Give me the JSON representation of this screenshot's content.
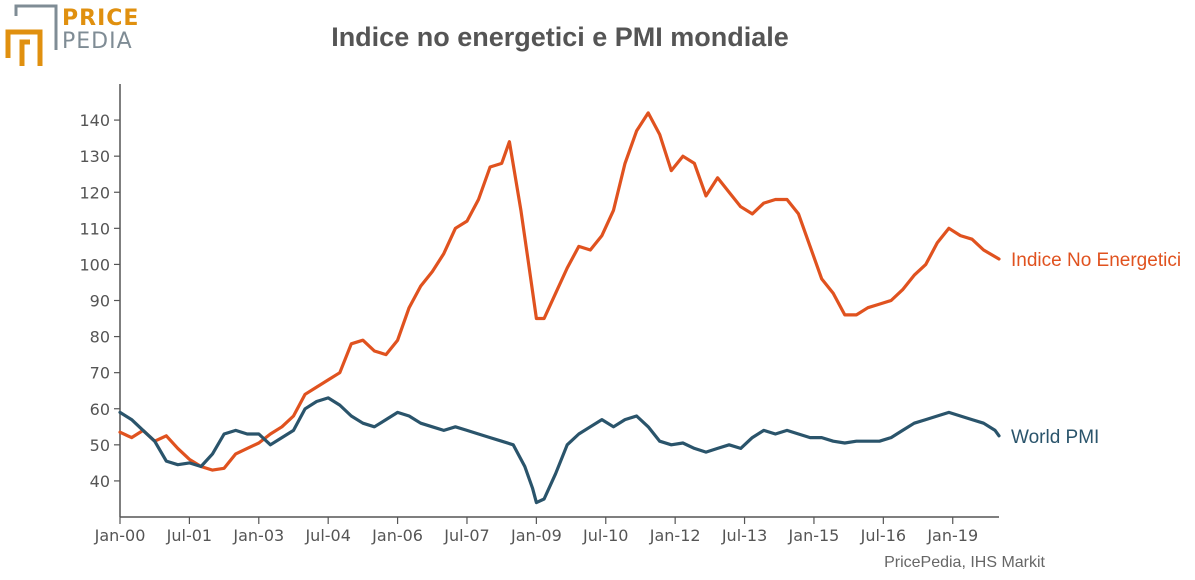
{
  "logo": {
    "word1": "PRICE",
    "word2": "PEDIA",
    "accent": "#e0900f",
    "grey": "#7f8c95"
  },
  "source": "PricePedia, IHS Markit",
  "colors": {
    "orange": "#e0521f",
    "blue": "#2a546b",
    "axis": "#555555"
  },
  "chart_data": {
    "type": "line",
    "title": "Indice no energetici e PMI mondiale",
    "ylim": [
      30,
      150
    ],
    "yticks": [
      40,
      50,
      60,
      70,
      80,
      90,
      100,
      110,
      120,
      130,
      140
    ],
    "xlim": [
      "2000-01",
      "2019-01"
    ],
    "xticks": [
      "Jan-00",
      "Jul-01",
      "Jan-03",
      "Jul-04",
      "Jan-06",
      "Jul-07",
      "Jan-09",
      "Jul-10",
      "Jan-12",
      "Jul-13",
      "Jan-15",
      "Jul-16",
      "Jan-19"
    ],
    "grid": false,
    "legend": "inline-right",
    "series": [
      {
        "name": "Indice No Energetici",
        "color": "#e0521f",
        "points": [
          [
            "2000-01",
            53.5
          ],
          [
            "2000-04",
            52
          ],
          [
            "2000-07",
            54
          ],
          [
            "2000-10",
            51
          ],
          [
            "2001-01",
            52.5
          ],
          [
            "2001-04",
            49
          ],
          [
            "2001-07",
            46
          ],
          [
            "2001-10",
            44
          ],
          [
            "2002-01",
            43
          ],
          [
            "2002-04",
            43.5
          ],
          [
            "2002-07",
            47.5
          ],
          [
            "2002-10",
            49
          ],
          [
            "2003-01",
            50.5
          ],
          [
            "2003-04",
            53
          ],
          [
            "2003-07",
            55
          ],
          [
            "2003-10",
            58
          ],
          [
            "2004-01",
            64
          ],
          [
            "2004-04",
            66
          ],
          [
            "2004-07",
            68
          ],
          [
            "2004-10",
            70
          ],
          [
            "2005-01",
            78
          ],
          [
            "2005-04",
            79
          ],
          [
            "2005-07",
            76
          ],
          [
            "2005-10",
            75
          ],
          [
            "2006-01",
            79
          ],
          [
            "2006-04",
            88
          ],
          [
            "2006-07",
            94
          ],
          [
            "2006-10",
            98
          ],
          [
            "2007-01",
            103
          ],
          [
            "2007-04",
            110
          ],
          [
            "2007-07",
            112
          ],
          [
            "2007-10",
            118
          ],
          [
            "2008-01",
            127
          ],
          [
            "2008-04",
            128
          ],
          [
            "2008-06",
            134
          ],
          [
            "2008-09",
            115
          ],
          [
            "2008-11",
            100
          ],
          [
            "2009-01",
            85
          ],
          [
            "2009-03",
            85
          ],
          [
            "2009-06",
            92
          ],
          [
            "2009-09",
            99
          ],
          [
            "2009-12",
            105
          ],
          [
            "2010-03",
            104
          ],
          [
            "2010-06",
            108
          ],
          [
            "2010-09",
            115
          ],
          [
            "2010-12",
            128
          ],
          [
            "2011-03",
            137
          ],
          [
            "2011-06",
            142
          ],
          [
            "2011-09",
            136
          ],
          [
            "2011-12",
            126
          ],
          [
            "2012-03",
            130
          ],
          [
            "2012-06",
            128
          ],
          [
            "2012-09",
            119
          ],
          [
            "2012-12",
            124
          ],
          [
            "2013-03",
            120
          ],
          [
            "2013-06",
            116
          ],
          [
            "2013-09",
            114
          ],
          [
            "2013-12",
            117
          ],
          [
            "2014-03",
            118
          ],
          [
            "2014-06",
            118
          ],
          [
            "2014-09",
            114
          ],
          [
            "2014-12",
            105
          ],
          [
            "2015-03",
            96
          ],
          [
            "2015-06",
            92
          ],
          [
            "2015-09",
            86
          ],
          [
            "2015-12",
            86
          ],
          [
            "2016-03",
            88
          ],
          [
            "2016-06",
            89
          ],
          [
            "2016-09",
            90
          ],
          [
            "2016-12",
            93
          ],
          [
            "2017-03",
            97
          ],
          [
            "2017-06",
            100
          ],
          [
            "2017-09",
            106
          ],
          [
            "2017-12",
            110
          ],
          [
            "2018-03",
            108
          ],
          [
            "2018-06",
            107
          ],
          [
            "2018-09",
            104
          ],
          [
            "2019-01",
            101.5
          ]
        ]
      },
      {
        "name": "World PMI",
        "color": "#2a546b",
        "points": [
          [
            "2000-01",
            59
          ],
          [
            "2000-04",
            57
          ],
          [
            "2000-07",
            54
          ],
          [
            "2000-10",
            51
          ],
          [
            "2001-01",
            45.5
          ],
          [
            "2001-04",
            44.5
          ],
          [
            "2001-07",
            45
          ],
          [
            "2001-10",
            44
          ],
          [
            "2002-01",
            47.5
          ],
          [
            "2002-04",
            53
          ],
          [
            "2002-07",
            54
          ],
          [
            "2002-10",
            53
          ],
          [
            "2003-01",
            53
          ],
          [
            "2003-04",
            50
          ],
          [
            "2003-07",
            52
          ],
          [
            "2003-10",
            54
          ],
          [
            "2004-01",
            60
          ],
          [
            "2004-04",
            62
          ],
          [
            "2004-07",
            63
          ],
          [
            "2004-10",
            61
          ],
          [
            "2005-01",
            58
          ],
          [
            "2005-04",
            56
          ],
          [
            "2005-07",
            55
          ],
          [
            "2005-10",
            57
          ],
          [
            "2006-01",
            59
          ],
          [
            "2006-04",
            58
          ],
          [
            "2006-07",
            56
          ],
          [
            "2006-10",
            55
          ],
          [
            "2007-01",
            54
          ],
          [
            "2007-04",
            55
          ],
          [
            "2007-07",
            54
          ],
          [
            "2007-10",
            53
          ],
          [
            "2008-01",
            52
          ],
          [
            "2008-04",
            51
          ],
          [
            "2008-07",
            50
          ],
          [
            "2008-10",
            44
          ],
          [
            "2008-12",
            38
          ],
          [
            "2009-01",
            34
          ],
          [
            "2009-03",
            35
          ],
          [
            "2009-06",
            42
          ],
          [
            "2009-09",
            50
          ],
          [
            "2009-12",
            53
          ],
          [
            "2010-03",
            55
          ],
          [
            "2010-06",
            57
          ],
          [
            "2010-09",
            55
          ],
          [
            "2010-12",
            57
          ],
          [
            "2011-03",
            58
          ],
          [
            "2011-06",
            55
          ],
          [
            "2011-09",
            51
          ],
          [
            "2011-12",
            50
          ],
          [
            "2012-03",
            50.5
          ],
          [
            "2012-06",
            49
          ],
          [
            "2012-09",
            48
          ],
          [
            "2012-12",
            49
          ],
          [
            "2013-03",
            50
          ],
          [
            "2013-06",
            49
          ],
          [
            "2013-09",
            52
          ],
          [
            "2013-12",
            54
          ],
          [
            "2014-03",
            53
          ],
          [
            "2014-06",
            54
          ],
          [
            "2014-09",
            53
          ],
          [
            "2014-12",
            52
          ],
          [
            "2015-03",
            52
          ],
          [
            "2015-06",
            51
          ],
          [
            "2015-09",
            50.5
          ],
          [
            "2015-12",
            51
          ],
          [
            "2016-03",
            51
          ],
          [
            "2016-06",
            51
          ],
          [
            "2016-09",
            52
          ],
          [
            "2016-12",
            54
          ],
          [
            "2017-03",
            56
          ],
          [
            "2017-06",
            57
          ],
          [
            "2017-09",
            58
          ],
          [
            "2017-12",
            59
          ],
          [
            "2018-03",
            58
          ],
          [
            "2018-06",
            57
          ],
          [
            "2018-09",
            56
          ],
          [
            "2018-12",
            54
          ],
          [
            "2019-01",
            52.5
          ]
        ]
      }
    ]
  }
}
